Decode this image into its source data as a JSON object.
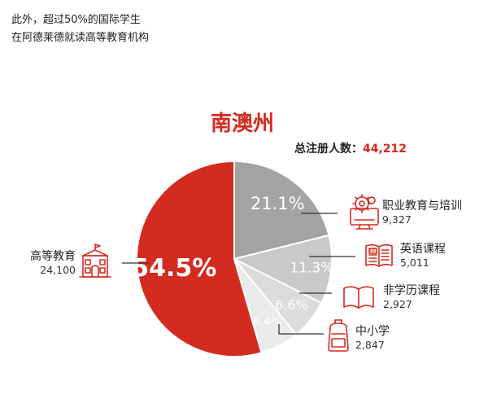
{
  "intro": {
    "line1": "此外，超过50%的国际学生",
    "line2": "在阿德莱德就读高等教育机构"
  },
  "chart_data": {
    "type": "pie",
    "title": "南澳州",
    "total_label": "总注册人数：",
    "total_value": "44,212",
    "slices": [
      {
        "key": "vocational",
        "name": "职业教育与培训",
        "value": 9327,
        "value_label": "9,327",
        "percent_label": "21.1%",
        "color": "#a3a3a3",
        "icon": "gear-monitor-icon"
      },
      {
        "key": "elicos",
        "name": "英语课程",
        "value": 5011,
        "value_label": "5,011",
        "percent_label": "11.3%",
        "color": "#c9c9c9",
        "icon": "abc-book-icon"
      },
      {
        "key": "non_award",
        "name": "非学历课程",
        "value": 2927,
        "value_label": "2,927",
        "percent_label": "6.6%",
        "color": "#dcdcdc",
        "icon": "open-book-icon"
      },
      {
        "key": "schools",
        "name": "中小学",
        "value": 2847,
        "value_label": "2,847",
        "percent_label": "6.4%",
        "color": "#ebebeb",
        "icon": "backpack-icon"
      },
      {
        "key": "higher_ed",
        "name": "高等教育",
        "value": 24100,
        "value_label": "24,100",
        "percent_label": "54.5%",
        "color": "#d42b20",
        "icon": "university-building-icon"
      }
    ],
    "colors": {
      "accent": "#d42b20",
      "text": "#222222",
      "leader": "#333333"
    }
  }
}
